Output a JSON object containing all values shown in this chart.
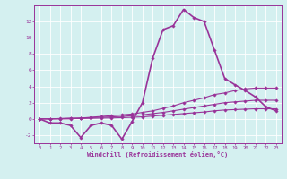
{
  "xlabel": "Windchill (Refroidissement éolien,°C)",
  "bg_color": "#d4f0f0",
  "line_color": "#993399",
  "grid_color": "#ffffff",
  "xlim": [
    -0.5,
    23.5
  ],
  "ylim": [
    -3.0,
    14.0
  ],
  "yticks": [
    -2,
    0,
    2,
    4,
    6,
    8,
    10,
    12
  ],
  "xticks": [
    0,
    1,
    2,
    3,
    4,
    5,
    6,
    7,
    8,
    9,
    10,
    11,
    12,
    13,
    14,
    15,
    16,
    17,
    18,
    19,
    20,
    21,
    22,
    23
  ],
  "series": [
    [
      0.0,
      -0.5,
      -0.5,
      -0.8,
      -2.3,
      -0.8,
      -0.5,
      -0.8,
      -2.5,
      -0.3,
      2.0,
      7.5,
      11.0,
      11.5,
      13.5,
      12.5,
      12.0,
      8.5,
      5.0,
      4.2,
      3.5,
      2.7,
      1.5,
      1.0
    ],
    [
      0.0,
      0.0,
      0.0,
      0.0,
      0.1,
      0.2,
      0.3,
      0.4,
      0.5,
      0.6,
      0.8,
      1.0,
      1.3,
      1.6,
      2.0,
      2.3,
      2.6,
      3.0,
      3.2,
      3.5,
      3.7,
      3.8,
      3.8,
      3.8
    ],
    [
      0.0,
      0.0,
      0.05,
      0.1,
      0.1,
      0.15,
      0.2,
      0.25,
      0.3,
      0.4,
      0.5,
      0.65,
      0.8,
      1.0,
      1.2,
      1.4,
      1.6,
      1.8,
      2.0,
      2.1,
      2.2,
      2.3,
      2.3,
      2.3
    ],
    [
      0.0,
      0.0,
      0.02,
      0.05,
      0.05,
      0.07,
      0.1,
      0.12,
      0.15,
      0.2,
      0.25,
      0.35,
      0.45,
      0.55,
      0.65,
      0.75,
      0.85,
      1.0,
      1.1,
      1.15,
      1.2,
      1.25,
      1.25,
      1.25
    ]
  ]
}
